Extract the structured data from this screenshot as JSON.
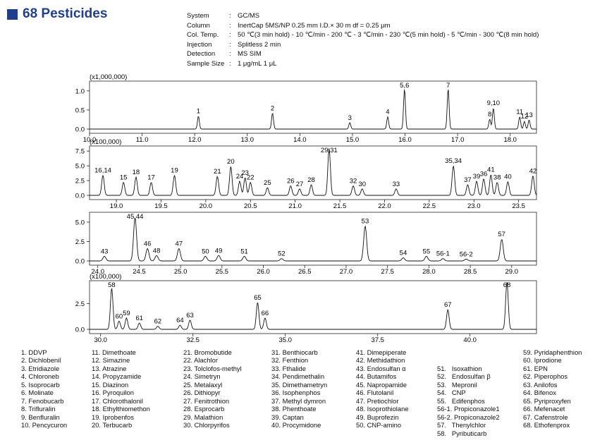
{
  "header": {
    "title": "68 Pesticides"
  },
  "conditions": [
    {
      "key": "System",
      "value": "GC/MS"
    },
    {
      "key": "Column",
      "value": "InertCap 5MS/NP   0.25 mm I.D.× 30 m   df = 0.25 μm"
    },
    {
      "key": "Col. Temp.",
      "value": "50 ℃(3 min hold) - 10 ℃/min - 200 ℃ - 3 ℃/min - 230 ℃(5 min hold) - 5 ℃/min - 300 ℃(8 min hold)"
    },
    {
      "key": "Injection",
      "value": "Splitless 2 min"
    },
    {
      "key": "Detection",
      "value": "MS SIM"
    },
    {
      "key": "Sample Size",
      "value": "1 μg/mL 1 μL"
    }
  ],
  "chart_data": [
    {
      "type": "line",
      "y_multiplier": "(x1,000,000)",
      "xlim": [
        10.0,
        18.5
      ],
      "ylim": [
        0,
        1.2
      ],
      "xticks": [
        10.0,
        11.0,
        12.0,
        13.0,
        14.0,
        15.0,
        16.0,
        17.0,
        18.0
      ],
      "xtick_labels": [
        "10.0",
        "11.0",
        "12.0",
        "13.0",
        "14.0",
        "15.0",
        "16.0",
        "17.0",
        "18.0"
      ],
      "yticks": [
        0,
        0.5,
        1.0
      ],
      "ytick_labels": [
        "0.0",
        "0.5",
        "1.0"
      ],
      "peaks": [
        {
          "x": 12.07,
          "h": 0.34,
          "label": "1"
        },
        {
          "x": 13.48,
          "h": 0.42,
          "label": "2"
        },
        {
          "x": 14.95,
          "h": 0.17,
          "label": "3"
        },
        {
          "x": 15.67,
          "h": 0.32,
          "label": "4"
        },
        {
          "x": 15.99,
          "h": 1.05,
          "label": "5,6"
        },
        {
          "x": 16.82,
          "h": 1.06,
          "label": "7"
        },
        {
          "x": 17.61,
          "h": 0.26,
          "label": "8"
        },
        {
          "x": 17.68,
          "h": 0.55,
          "label": "9,10"
        },
        {
          "x": 18.18,
          "h": 0.32,
          "label": "11"
        },
        {
          "x": 18.27,
          "h": 0.2,
          "label": "12"
        },
        {
          "x": 18.36,
          "h": 0.24,
          "label": "13"
        }
      ]
    },
    {
      "type": "line",
      "y_multiplier": "(x100,000)",
      "xlim": [
        18.7,
        23.7
      ],
      "ylim": [
        0,
        8.0
      ],
      "xticks": [
        19.0,
        19.5,
        20.0,
        20.5,
        21.0,
        21.5,
        22.0,
        22.5,
        23.0,
        23.5
      ],
      "xtick_labels": [
        "19.0",
        "19.5",
        "20.0",
        "20.5",
        "21.0",
        "21.5",
        "22.0",
        "22.5",
        "23.0",
        "23.5"
      ],
      "yticks": [
        0,
        2.5,
        5.0,
        7.5
      ],
      "ytick_labels": [
        "0.0",
        "2.5",
        "5.0",
        "7.5"
      ],
      "peaks": [
        {
          "x": 18.85,
          "h": 3.4,
          "label": "16,14"
        },
        {
          "x": 19.08,
          "h": 2.2,
          "label": "15"
        },
        {
          "x": 19.22,
          "h": 3.1,
          "label": "18"
        },
        {
          "x": 19.39,
          "h": 2.2,
          "label": "17"
        },
        {
          "x": 19.65,
          "h": 3.4,
          "label": "19"
        },
        {
          "x": 20.13,
          "h": 3.2,
          "label": "21"
        },
        {
          "x": 20.28,
          "h": 4.9,
          "label": "20"
        },
        {
          "x": 20.38,
          "h": 2.4,
          "label": "24"
        },
        {
          "x": 20.44,
          "h": 3.0,
          "label": "23"
        },
        {
          "x": 20.5,
          "h": 2.2,
          "label": "22"
        },
        {
          "x": 20.69,
          "h": 1.3,
          "label": "25"
        },
        {
          "x": 20.95,
          "h": 1.6,
          "label": "26"
        },
        {
          "x": 21.05,
          "h": 1.1,
          "label": "27"
        },
        {
          "x": 21.18,
          "h": 1.8,
          "label": "28"
        },
        {
          "x": 21.38,
          "h": 8.0,
          "label": "29,31"
        },
        {
          "x": 21.65,
          "h": 1.6,
          "label": "32"
        },
        {
          "x": 21.75,
          "h": 1.1,
          "label": "30"
        },
        {
          "x": 22.13,
          "h": 1.1,
          "label": "33"
        },
        {
          "x": 22.77,
          "h": 5.0,
          "label": "35,34"
        },
        {
          "x": 22.93,
          "h": 1.8,
          "label": "37"
        },
        {
          "x": 23.03,
          "h": 2.4,
          "label": "39"
        },
        {
          "x": 23.11,
          "h": 2.8,
          "label": "36"
        },
        {
          "x": 23.19,
          "h": 3.5,
          "label": "41"
        },
        {
          "x": 23.26,
          "h": 2.2,
          "label": "38"
        },
        {
          "x": 23.38,
          "h": 2.3,
          "label": "40"
        },
        {
          "x": 23.66,
          "h": 3.3,
          "label": "42"
        }
      ]
    },
    {
      "type": "line",
      "y_multiplier": "",
      "xlim": [
        23.9,
        29.3
      ],
      "ylim": [
        0,
        6.0
      ],
      "xticks": [
        24.0,
        24.5,
        25.0,
        25.5,
        26.0,
        26.5,
        27.0,
        27.5,
        28.0,
        28.5,
        29.0
      ],
      "xtick_labels": [
        "24.0",
        "24.5",
        "25.0",
        "25.5",
        "26.0",
        "26.5",
        "27.0",
        "27.5",
        "28.0",
        "28.5",
        "29.0"
      ],
      "yticks": [
        0,
        2.5,
        5.0
      ],
      "ytick_labels": [
        "0.0",
        "2.5",
        "5.0"
      ],
      "peaks": [
        {
          "x": 24.08,
          "h": 0.6,
          "label": "43"
        },
        {
          "x": 24.45,
          "h": 5.6,
          "label": "45,44"
        },
        {
          "x": 24.6,
          "h": 1.6,
          "label": "46"
        },
        {
          "x": 24.71,
          "h": 0.7,
          "label": "48"
        },
        {
          "x": 24.98,
          "h": 1.6,
          "label": "47"
        },
        {
          "x": 25.3,
          "h": 0.6,
          "label": "50"
        },
        {
          "x": 25.46,
          "h": 0.7,
          "label": "49"
        },
        {
          "x": 25.77,
          "h": 0.6,
          "label": "51"
        },
        {
          "x": 26.22,
          "h": 0.3,
          "label": "52"
        },
        {
          "x": 27.23,
          "h": 4.5,
          "label": "53"
        },
        {
          "x": 27.69,
          "h": 0.4,
          "label": "54"
        },
        {
          "x": 27.97,
          "h": 0.6,
          "label": "55"
        },
        {
          "x": 28.17,
          "h": 0.3,
          "label": "56-1"
        },
        {
          "x": 28.45,
          "h": 0.25,
          "label": "56-2"
        },
        {
          "x": 28.88,
          "h": 2.8,
          "label": "57"
        }
      ]
    },
    {
      "type": "line",
      "y_multiplier": "(x100,000)",
      "xlim": [
        29.7,
        41.8
      ],
      "ylim": [
        0,
        4.5
      ],
      "xticks": [
        30.0,
        32.5,
        35.0,
        37.5,
        40.0
      ],
      "xtick_labels": [
        "30.0",
        "32.5",
        "35.0",
        "37.5",
        "40.0"
      ],
      "yticks": [
        0,
        2.5
      ],
      "ytick_labels": [
        "0.0",
        "2.5"
      ],
      "peaks": [
        {
          "x": 30.3,
          "h": 4.0,
          "label": "58"
        },
        {
          "x": 30.5,
          "h": 0.8,
          "label": "60"
        },
        {
          "x": 30.7,
          "h": 1.1,
          "label": "59"
        },
        {
          "x": 31.05,
          "h": 0.6,
          "label": "61"
        },
        {
          "x": 31.55,
          "h": 0.3,
          "label": "62"
        },
        {
          "x": 32.15,
          "h": 0.4,
          "label": "64"
        },
        {
          "x": 32.42,
          "h": 0.9,
          "label": "63"
        },
        {
          "x": 34.25,
          "h": 2.6,
          "label": "65"
        },
        {
          "x": 34.45,
          "h": 1.1,
          "label": "66"
        },
        {
          "x": 39.4,
          "h": 1.9,
          "label": "67"
        },
        {
          "x": 41.0,
          "h": 4.6,
          "label": "68"
        }
      ]
    }
  ],
  "compounds": [
    [
      "1. DDVP",
      "2. Dichlobenil",
      "3. Etridiazole",
      "4. Chloroneb",
      "5. Isoprocarb",
      "6. Molinate",
      "7. Fenobucarb",
      "8. Trifluralin",
      "9. Benfluralin",
      "10. Pencycuron"
    ],
    [
      "11. Dimethoate",
      "12. Simazine",
      "13. Atrazine",
      "14. Propyzamide",
      "15. Diazinon",
      "16. Pyroquilon",
      "17. Chlorothalonil",
      "18. Ethylthiomethon",
      "19. Iprobenfos",
      "20. Terbucarb"
    ],
    [
      "21. Bromobutide",
      "22. Alachlor",
      "23. Tolclofos-methyl",
      "24. Simetryn",
      "25. Metalaxyl",
      "26. Dithiopyr",
      "27. Fenitrothion",
      "28. Esprocarb",
      "29. Malathion",
      "30. Chlorpyrifos"
    ],
    [
      "31. Benthiocarb",
      "32. Fenthion",
      "33. Fthalide",
      "34. Pendimethalin",
      "35. Dimethametryn",
      "36. Isophenphos",
      "37. Methyl dymron",
      "38. Phenthoate",
      "39. Captan",
      "40. Procymidone"
    ],
    [
      "41. Dimepiperate",
      "42. Methidathion",
      "43. Endosulfan α",
      "44. Butamifos",
      "45. Napropamide",
      "46. Flutolanil",
      "47. Pretiochlor",
      "48. Isoprothiolane",
      "49. Buprofezin",
      "50. CNP-amino"
    ],
    [
      "51.   Isoxathion",
      "52.   Endosulfan β",
      "53.   Mepronil",
      "54.   CNP",
      "55.   Edifenphos",
      "56-1. Propiconazole1",
      "56-2. Propiconazole2",
      "57.   Thenylchlor",
      "58.   Pyributicarb",
      ""
    ],
    [
      "59. Pyridaphenthion",
      "60. Iprodione",
      "61. EPN",
      "62. Piperophos",
      "63. Anilofos",
      "64. Bifenox",
      "65. Pyriproxyfen",
      "66. Mefenacet",
      "67. Cafenstrole",
      "68. Ethofenprox"
    ]
  ]
}
